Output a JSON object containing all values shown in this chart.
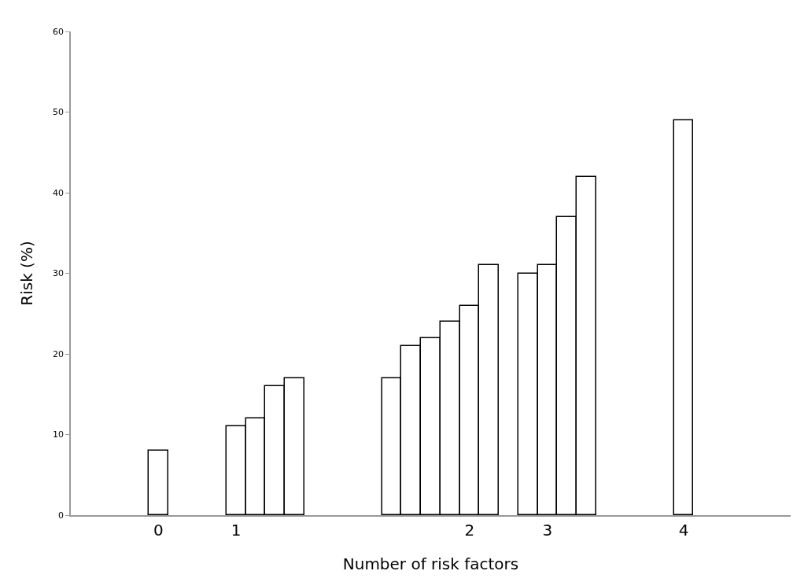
{
  "chart_data": {
    "type": "bar",
    "xlabel": "Number of risk factors",
    "ylabel": "Risk (%)",
    "categories": [
      null,
      null,
      null,
      null,
      "0",
      null,
      null,
      null,
      "1",
      null,
      null,
      null,
      null,
      null,
      null,
      null,
      null,
      null,
      null,
      null,
      "2",
      null,
      null,
      null,
      "3",
      null,
      null,
      null,
      null,
      null,
      null,
      "4",
      null,
      null,
      null,
      null,
      null
    ],
    "values": [
      null,
      null,
      null,
      null,
      8,
      null,
      null,
      null,
      11,
      12,
      16,
      17,
      null,
      null,
      null,
      null,
      17,
      21,
      22,
      24,
      26,
      31,
      null,
      30,
      31,
      37,
      42,
      null,
      null,
      null,
      null,
      49,
      null,
      null,
      null,
      null,
      null
    ],
    "color": "#ffffff",
    "ylim": [
      0,
      60
    ],
    "yticks": [
      0,
      10,
      20,
      30,
      40,
      50,
      60
    ],
    "grid": false,
    "legend": false
  }
}
